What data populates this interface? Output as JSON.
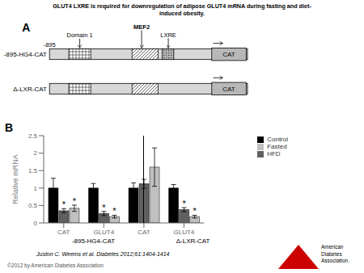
{
  "chart_data": {
    "type": "bar",
    "title": "GLUT4 LXRE is required for downregulation of adipose GLUT4 mRNA during fasting and diet-\ninduced obesity.",
    "panel_labels": [
      "A",
      "B"
    ],
    "diagram": {
      "start_label": "-895",
      "element_labels": [
        "Domain 1",
        "MEF2",
        "LXRE"
      ],
      "reporter": "CAT",
      "constructs": [
        {
          "name": "-895-HG4-CAT",
          "lxre": true
        },
        {
          "name": "Δ-LXR-CAT",
          "lxre": false
        }
      ]
    },
    "categories": [
      "CAT",
      "GLUT4",
      "CAT",
      "GLUT4"
    ],
    "group_labels": [
      "-895-HG4-CAT",
      "Δ-LXR-CAT"
    ],
    "series": [
      {
        "name": "Control",
        "color": "#000000",
        "values": [
          1.0,
          1.0,
          1.0,
          1.0
        ],
        "errors": [
          0.28,
          0.13,
          0.15,
          0.1
        ]
      },
      {
        "name": "HFD",
        "color": "#606060",
        "values": [
          0.35,
          0.27,
          1.12,
          0.38
        ],
        "errors": [
          0.06,
          0.06,
          0.13,
          0.06
        ],
        "significance": [
          "*",
          "*",
          null,
          "*"
        ]
      },
      {
        "name": "Fasted",
        "color": "#c0c0c0",
        "values": [
          0.42,
          0.18,
          1.6,
          0.18
        ],
        "errors": [
          0.09,
          0.04,
          0.55,
          0.04
        ],
        "significance": [
          "*",
          "*",
          null,
          "*"
        ]
      }
    ],
    "ylabel": "Relative mRNA",
    "ylim": [
      0,
      2.5
    ],
    "yticks": [
      0,
      0.5,
      1,
      1.5,
      2,
      2.5
    ],
    "legend": "right",
    "citation": "Juston C. Weems et al. Diabetes 2012;61:1404-1414",
    "copyright": "©2012 by American Diabetes Association",
    "logo_text": "American\nDiabetes\nAssociation.",
    "logo_color": "#cc0000"
  }
}
